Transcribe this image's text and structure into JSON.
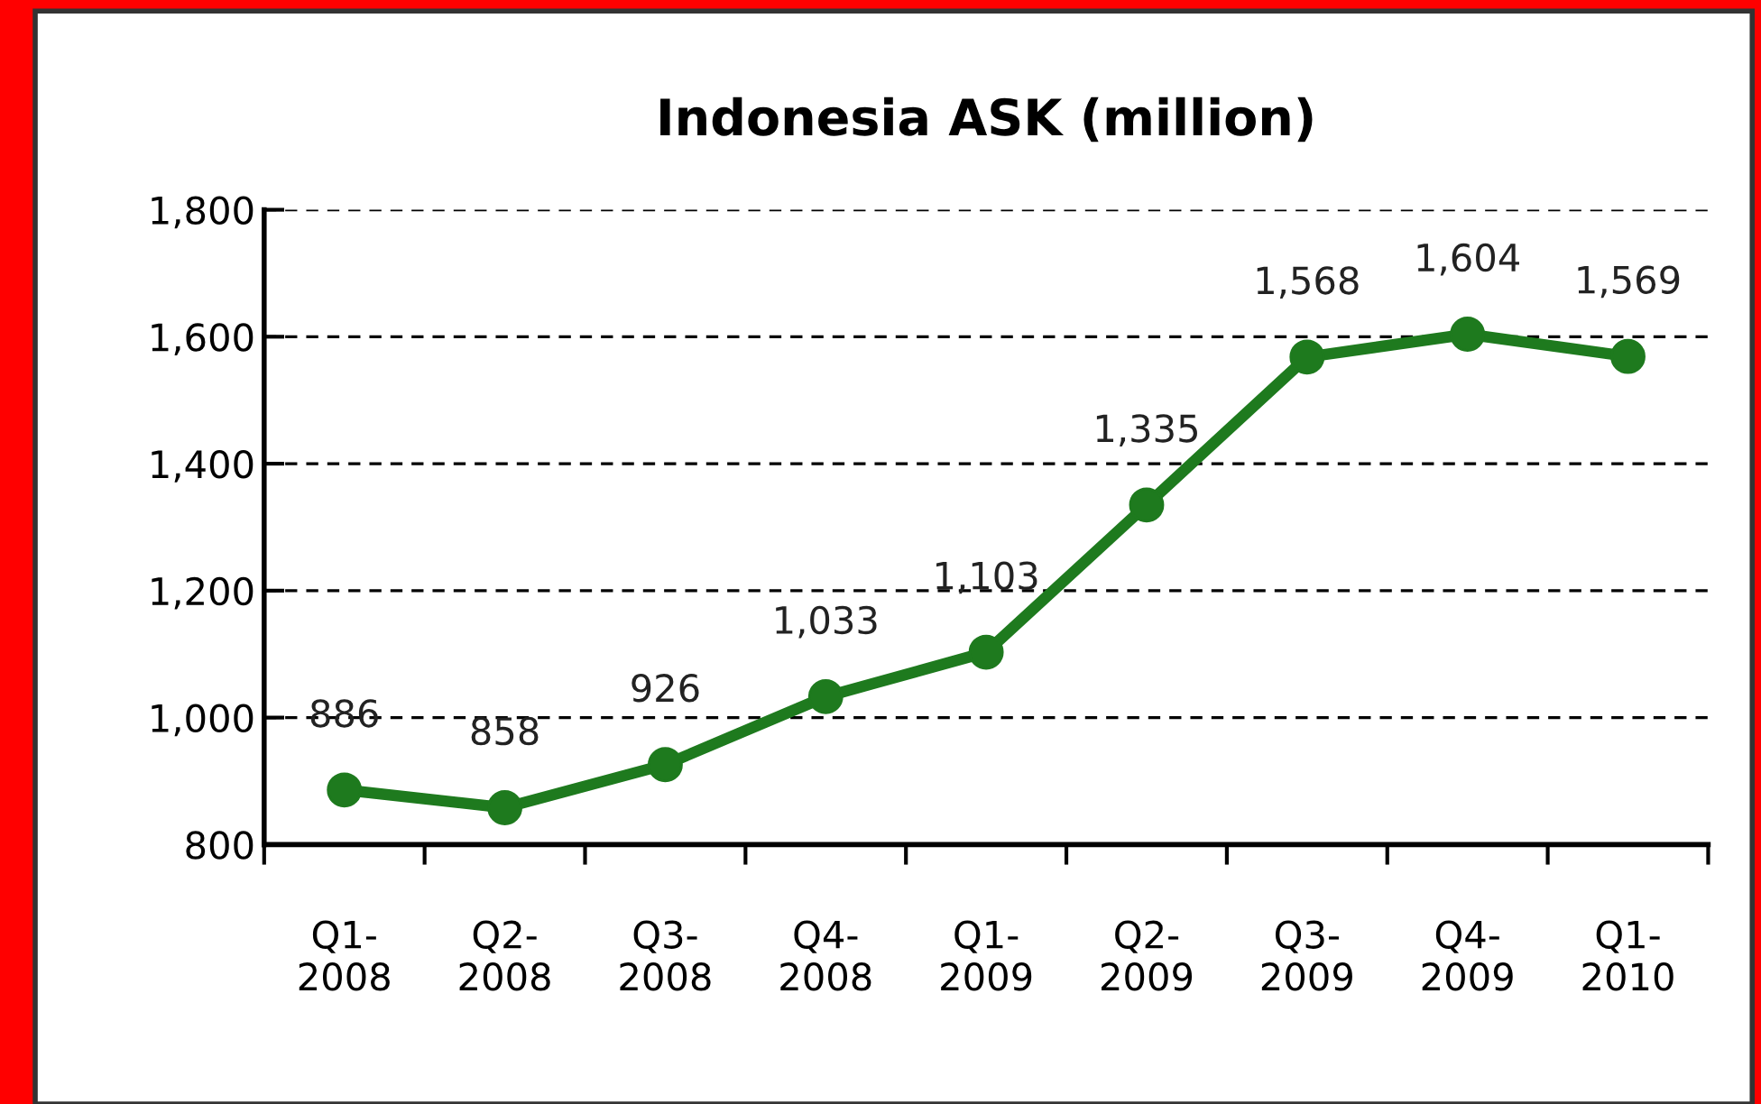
{
  "chart_data": {
    "type": "line",
    "title": "Indonesia ASK (million)",
    "categories": [
      "Q1-\n2008",
      "Q2-\n2008",
      "Q3-\n2008",
      "Q4-\n2008",
      "Q1-\n2009",
      "Q2-\n2009",
      "Q3-\n2009",
      "Q4-\n2009",
      "Q1-\n2010"
    ],
    "series": [
      {
        "color": "#1e7a1e",
        "values": [
          886,
          858,
          926,
          1033,
          1103,
          1335,
          1568,
          1604,
          1569
        ],
        "value_labels": [
          "886",
          "858",
          "926",
          "1,033",
          "1,103",
          "1,335",
          "1,568",
          "1,604",
          "1,569"
        ]
      }
    ],
    "ylim": [
      800,
      1800
    ],
    "yticks": [
      {
        "value": 800,
        "label": "800"
      },
      {
        "value": 1000,
        "label": "1,000"
      },
      {
        "value": 1200,
        "label": "1,200"
      },
      {
        "value": 1400,
        "label": "1,400"
      },
      {
        "value": 1600,
        "label": "1,600"
      },
      {
        "value": 1800,
        "label": "1,800"
      }
    ],
    "grid": "y",
    "marker": "circle",
    "line_style": "solid",
    "legend": false
  }
}
